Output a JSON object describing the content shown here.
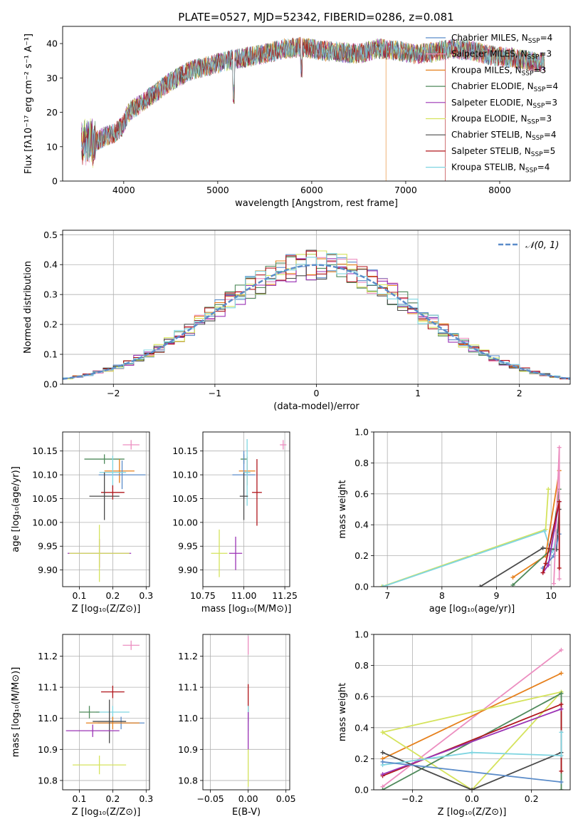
{
  "figure": {
    "title": "PLATE=0527, MJD=52342, FIBERID=0286, z=0.081"
  },
  "chart_data": [
    {
      "id": "spectrum",
      "type": "line",
      "xlabel": "wavelength [Angstrom, rest frame]",
      "ylabel": "Flux [fλ10⁻¹⁷ erg cm⁻² s⁻¹ A⁻¹]",
      "xlim": [
        3350,
        8750
      ],
      "ylim": [
        0,
        45
      ],
      "xticks": [
        4000,
        5000,
        6000,
        7000,
        8000
      ],
      "yticks": [
        0,
        10,
        20,
        30,
        40
      ],
      "grid": false,
      "legend_position": "right",
      "continuum": {
        "x": [
          3550,
          3700,
          3800,
          3900,
          3990,
          4050,
          4200,
          4350,
          4500,
          4700,
          4900,
          5100,
          5300,
          5500,
          5700,
          5900,
          6100,
          6300,
          6500,
          6700,
          6900,
          7100,
          7300,
          7500,
          7700,
          7900,
          8100,
          8300,
          8480
        ],
        "y": [
          11,
          11.5,
          13,
          14,
          16,
          20,
          23,
          26,
          29,
          32,
          33.5,
          35,
          36,
          37,
          38.5,
          39,
          38,
          37.5,
          37,
          38.5,
          38,
          37,
          37.5,
          38.5,
          38,
          36.5,
          36,
          35,
          34.5
        ]
      },
      "series": [
        {
          "name": "Chabrier MILES, N_SSP=4",
          "color": "#5b8cc9"
        },
        {
          "name": "Salpeter MILES, N_SSP=3",
          "color": "#ec8ec0"
        },
        {
          "name": "Kroupa MILES, N_SSP=3",
          "color": "#e6801c"
        },
        {
          "name": "Chabrier ELODIE, N_SSP=4",
          "color": "#4f8a5b"
        },
        {
          "name": "Salpeter ELODIE, N_SSP=3",
          "color": "#9b33b5"
        },
        {
          "name": "Kroupa ELODIE, N_SSP=3",
          "color": "#d5e35d"
        },
        {
          "name": "Chabrier STELIB, N_SSP=4",
          "color": "#4a4a4a"
        },
        {
          "name": "Salpeter STELIB, N_SSP=5",
          "color": "#b0161c"
        },
        {
          "name": "Kroupa STELIB, N_SSP=4",
          "color": "#7fd5e1"
        }
      ],
      "legend_labels": [
        {
          "text": "Chabrier MILES, N",
          "sub": "SSP",
          "post": "=4"
        },
        {
          "text": "Salpeter MILES, N",
          "sub": "SSP",
          "post": "=3"
        },
        {
          "text": "Kroupa MILES, N",
          "sub": "SSP",
          "post": "=3"
        },
        {
          "text": "Chabrier ELODIE, N",
          "sub": "SSP",
          "post": "=4"
        },
        {
          "text": "Salpeter ELODIE, N",
          "sub": "SSP",
          "post": "=3"
        },
        {
          "text": "Kroupa ELODIE, N",
          "sub": "SSP",
          "post": "=3"
        },
        {
          "text": "Chabrier STELIB, N",
          "sub": "SSP",
          "post": "=4"
        },
        {
          "text": "Salpeter STELIB, N",
          "sub": "SSP",
          "post": "=5"
        },
        {
          "text": "Kroupa STELIB, N",
          "sub": "SSP",
          "post": "=4"
        }
      ]
    },
    {
      "id": "residuals",
      "type": "area",
      "xlabel": "(data-model)/error",
      "ylabel": "Normed distribution",
      "xlim": [
        -2.5,
        2.5
      ],
      "ylim": [
        0,
        0.515
      ],
      "xticks": [
        -2,
        -1,
        0,
        1,
        2
      ],
      "yticks": [
        0.0,
        0.1,
        0.2,
        0.3,
        0.4,
        0.5
      ],
      "grid": true,
      "legend_position": "top-right",
      "reference_curve": {
        "name": "𝒩(0, 1)",
        "color": "#5b8cc9",
        "style": "dashed"
      },
      "bin_width": 0.1,
      "series_colors": [
        "#5b8cc9",
        "#ec8ec0",
        "#e6801c",
        "#4f8a5b",
        "#9b33b5",
        "#d5e35d",
        "#4a4a4a",
        "#b0161c",
        "#7fd5e1"
      ]
    },
    {
      "id": "age-vs-Z",
      "type": "scatter",
      "xlabel": "Z [log₁₀(Z/Z⊙)]",
      "ylabel": "age  [log₁₀(age/yr)]",
      "xlim": [
        0.05,
        0.31
      ],
      "ylim": [
        9.865,
        10.19
      ],
      "xticks": [
        0.1,
        0.2,
        0.3
      ],
      "yticks": [
        9.9,
        9.95,
        10.0,
        10.05,
        10.1,
        10.15
      ],
      "grid": true,
      "points": [
        {
          "x": 0.255,
          "y": 10.163,
          "dx": 0.025,
          "dy": 0.01,
          "color": "#ec8ec0"
        },
        {
          "x": 0.175,
          "y": 10.133,
          "dx": 0.06,
          "dy": 0.01,
          "color": "#4f8a5b"
        },
        {
          "x": 0.22,
          "y": 10.108,
          "dx": 0.045,
          "dy": 0.025,
          "color": "#e6801c"
        },
        {
          "x": 0.228,
          "y": 10.1,
          "dx": 0.07,
          "dy": 0.03,
          "color": "#5b8cc9"
        },
        {
          "x": 0.2,
          "y": 10.105,
          "dx": 0.04,
          "dy": 0.035,
          "color": "#7fd5e1"
        },
        {
          "x": 0.2,
          "y": 10.063,
          "dx": 0.035,
          "dy": 0.015,
          "color": "#b0161c"
        },
        {
          "x": 0.175,
          "y": 10.055,
          "dx": 0.045,
          "dy": 0.05,
          "color": "#4a4a4a"
        },
        {
          "x": 0.16,
          "y": 9.935,
          "dx": 0.095,
          "dy": 0.03,
          "color": "#9b33b5"
        },
        {
          "x": 0.16,
          "y": 9.935,
          "dx": 0.09,
          "dy": 0.06,
          "color": "#d5e35d"
        }
      ]
    },
    {
      "id": "age-vs-mass",
      "type": "scatter",
      "xlabel": "mass [log₁₀(M/M⊙)]",
      "ylabel": "",
      "xlim": [
        10.75,
        11.28
      ],
      "ylim": [
        9.865,
        10.19
      ],
      "xticks": [
        10.75,
        11.0,
        11.25
      ],
      "yticks": [
        9.9,
        9.95,
        10.0,
        10.05,
        10.1,
        10.15
      ],
      "grid": true,
      "points": [
        {
          "x": 11.24,
          "y": 10.163,
          "dx": 0.02,
          "dy": 0.01,
          "color": "#ec8ec0"
        },
        {
          "x": 11.0,
          "y": 10.133,
          "dx": 0.02,
          "dy": 0.01,
          "color": "#4f8a5b"
        },
        {
          "x": 11.02,
          "y": 10.108,
          "dx": 0.05,
          "dy": 0.03,
          "color": "#e6801c"
        },
        {
          "x": 11.0,
          "y": 10.1,
          "dx": 0.07,
          "dy": 0.05,
          "color": "#5b8cc9"
        },
        {
          "x": 11.02,
          "y": 10.105,
          "dx": 0.02,
          "dy": 0.07,
          "color": "#7fd5e1"
        },
        {
          "x": 11.08,
          "y": 10.063,
          "dx": 0.03,
          "dy": 0.07,
          "color": "#b0161c"
        },
        {
          "x": 11.0,
          "y": 10.055,
          "dx": 0.025,
          "dy": 0.05,
          "color": "#4a4a4a"
        },
        {
          "x": 10.95,
          "y": 9.935,
          "dx": 0.04,
          "dy": 0.035,
          "color": "#9b33b5"
        },
        {
          "x": 10.85,
          "y": 9.935,
          "dx": 0.05,
          "dy": 0.05,
          "color": "#d5e35d"
        }
      ]
    },
    {
      "id": "mass-weight-vs-age",
      "type": "line",
      "xlabel": "age  [log₁₀(age/yr)]",
      "ylabel": "mass weight",
      "xlim": [
        6.75,
        10.35
      ],
      "ylim": [
        0,
        1.0
      ],
      "xticks": [
        7,
        8,
        9,
        10
      ],
      "yticks": [
        0.0,
        0.2,
        0.4,
        0.6,
        0.8,
        1.0
      ],
      "grid": true,
      "series": [
        {
          "color": "#d5e35d",
          "x": [
            6.9,
            9.9,
            9.95
          ],
          "y": [
            0.0,
            0.37,
            0.63
          ]
        },
        {
          "color": "#7fd5e1",
          "x": [
            6.92,
            9.88,
            10.0,
            10.05,
            10.1
          ],
          "y": [
            0.0,
            0.36,
            0.22,
            0.24,
            0.36
          ]
        },
        {
          "color": "#4a4a4a",
          "x": [
            8.7,
            9.85,
            10.1,
            10.15
          ],
          "y": [
            0.0,
            0.25,
            0.24,
            0.5
          ]
        },
        {
          "color": "#e6801c",
          "x": [
            9.3,
            9.9,
            10.15
          ],
          "y": [
            0.06,
            0.2,
            0.75
          ]
        },
        {
          "color": "#4f8a5b",
          "x": [
            9.3,
            10.0,
            10.15
          ],
          "y": [
            0.01,
            0.24,
            0.63
          ]
        },
        {
          "color": "#5b8cc9",
          "x": [
            9.85,
            10.05,
            10.15
          ],
          "y": [
            0.12,
            0.2,
            0.34
          ]
        },
        {
          "color": "#ec8ec0",
          "x": [
            10.05,
            10.15,
            10.15
          ],
          "y": [
            0.02,
            0.9,
            0.05
          ]
        },
        {
          "color": "#9b33b5",
          "x": [
            9.85,
            9.95,
            10.15
          ],
          "y": [
            0.09,
            0.14,
            0.55
          ]
        },
        {
          "color": "#b0161c",
          "x": [
            9.85,
            9.9,
            10.15,
            10.15
          ],
          "y": [
            0.09,
            0.15,
            0.55,
            0.12
          ]
        }
      ]
    },
    {
      "id": "mass-vs-Z",
      "type": "scatter",
      "xlabel": "Z [log₁₀(Z/Z⊙)]",
      "ylabel": "mass [log₁₀(M/M⊙)]",
      "xlim": [
        0.05,
        0.31
      ],
      "ylim": [
        10.77,
        11.27
      ],
      "xticks": [
        0.1,
        0.2,
        0.3
      ],
      "yticks": [
        10.8,
        10.9,
        11.0,
        11.1,
        11.2
      ],
      "grid": true,
      "points": [
        {
          "x": 0.255,
          "y": 11.235,
          "dx": 0.025,
          "dy": 0.015,
          "color": "#ec8ec0"
        },
        {
          "x": 0.2,
          "y": 11.085,
          "dx": 0.035,
          "dy": 0.02,
          "color": "#b0161c"
        },
        {
          "x": 0.2,
          "y": 11.02,
          "dx": 0.05,
          "dy": 0.02,
          "color": "#7fd5e1"
        },
        {
          "x": 0.13,
          "y": 11.02,
          "dx": 0.03,
          "dy": 0.02,
          "color": "#4f8a5b"
        },
        {
          "x": 0.225,
          "y": 10.985,
          "dx": 0.07,
          "dy": 0.02,
          "color": "#5b8cc9"
        },
        {
          "x": 0.2,
          "y": 10.985,
          "dx": 0.08,
          "dy": 0.02,
          "color": "#e6801c"
        },
        {
          "x": 0.19,
          "y": 10.99,
          "dx": 0.05,
          "dy": 0.07,
          "color": "#4a4a4a"
        },
        {
          "x": 0.14,
          "y": 10.96,
          "dx": 0.08,
          "dy": 0.02,
          "color": "#9b33b5"
        },
        {
          "x": 0.16,
          "y": 10.85,
          "dx": 0.08,
          "dy": 0.03,
          "color": "#d5e35d"
        }
      ]
    },
    {
      "id": "mass-vs-EBV",
      "type": "scatter",
      "xlabel": "E(B-V)",
      "ylabel": "",
      "xlim": [
        -0.06,
        0.055
      ],
      "ylim": [
        10.77,
        11.27
      ],
      "xticks": [
        -0.05,
        0.0,
        0.05
      ],
      "yticks": [
        10.8,
        10.9,
        11.0,
        11.1,
        11.2
      ],
      "grid": true,
      "points": [
        {
          "x": 0.0,
          "y": 11.235,
          "dx": 0.0,
          "dy": 0.03,
          "color": "#ec8ec0"
        },
        {
          "x": 0.0,
          "y": 11.05,
          "dx": 0.0,
          "dy": 0.06,
          "color": "#b0161c"
        },
        {
          "x": 0.0,
          "y": 11.0,
          "dx": 0.0,
          "dy": 0.04,
          "color": "#7fd5e1"
        },
        {
          "x": 0.0,
          "y": 10.96,
          "dx": 0.0,
          "dy": 0.06,
          "color": "#9b33b5"
        },
        {
          "x": 0.0,
          "y": 10.84,
          "dx": 0.0,
          "dy": 0.06,
          "color": "#d5e35d"
        }
      ]
    },
    {
      "id": "mass-weight-vs-Z",
      "type": "line",
      "xlabel": "Z [log₁₀(Z/Z⊙)]",
      "ylabel": "mass weight",
      "xlim": [
        -0.33,
        0.33
      ],
      "ylim": [
        0,
        1.0
      ],
      "xticks": [
        -0.2,
        0.0,
        0.2
      ],
      "yticks": [
        0.0,
        0.2,
        0.4,
        0.6,
        0.8,
        1.0
      ],
      "grid": true,
      "series": [
        {
          "color": "#ec8ec0",
          "x": [
            -0.3,
            0.3
          ],
          "y": [
            0.02,
            0.9
          ]
        },
        {
          "color": "#e6801c",
          "x": [
            -0.3,
            0.3
          ],
          "y": [
            0.2,
            0.75
          ]
        },
        {
          "color": "#d5e35d",
          "x": [
            -0.3,
            0.0,
            0.3,
            -0.3
          ],
          "y": [
            0.37,
            0.0,
            0.63,
            0.37
          ]
        },
        {
          "color": "#4f8a5b",
          "x": [
            -0.3,
            0.3,
            0.3
          ],
          "y": [
            0.0,
            0.62,
            0.0
          ]
        },
        {
          "color": "#b0161c",
          "x": [
            -0.3,
            0.3,
            0.3
          ],
          "y": [
            0.09,
            0.55,
            0.12
          ]
        },
        {
          "color": "#9b33b5",
          "x": [
            -0.3,
            0.3
          ],
          "y": [
            0.1,
            0.52
          ]
        },
        {
          "color": "#4a4a4a",
          "x": [
            -0.3,
            0.0,
            0.3
          ],
          "y": [
            0.24,
            0.0,
            0.24
          ]
        },
        {
          "color": "#7fd5e1",
          "x": [
            -0.3,
            0.0,
            0.3,
            0.3
          ],
          "y": [
            0.16,
            0.24,
            0.22,
            0.37
          ]
        },
        {
          "color": "#5b8cc9",
          "x": [
            -0.3,
            0.3
          ],
          "y": [
            0.18,
            0.05
          ]
        }
      ]
    }
  ]
}
